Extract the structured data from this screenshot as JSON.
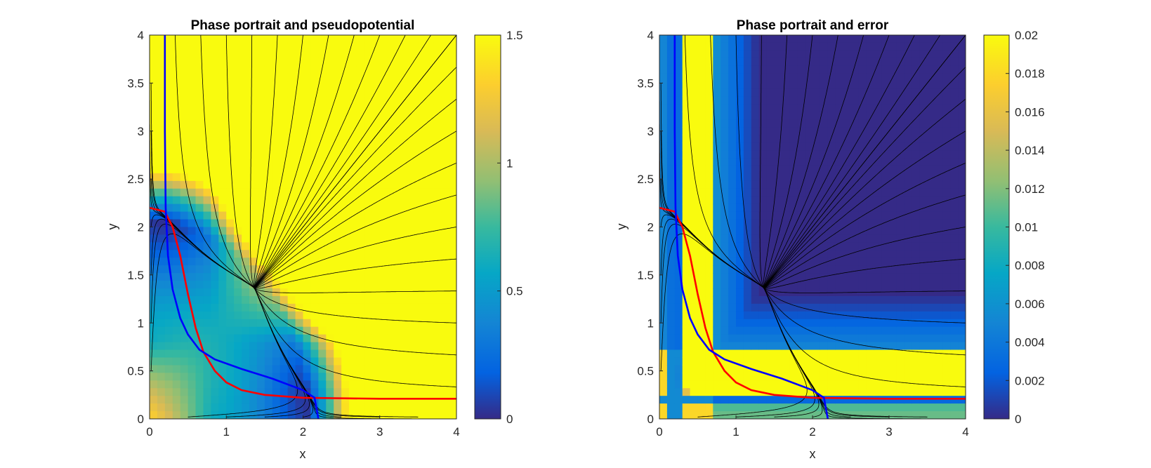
{
  "chart_data": [
    {
      "type": "heatmap",
      "title": "Phase portrait and pseudopotential",
      "xlabel": "x",
      "ylabel": "y",
      "xlim": [
        0,
        4
      ],
      "ylim": [
        0,
        4
      ],
      "x_ticks": [
        "0",
        "1",
        "2",
        "3",
        "4"
      ],
      "y_ticks": [
        "0",
        "0.5",
        "1",
        "1.5",
        "2",
        "2.5",
        "3",
        "3.5",
        "4"
      ],
      "colorbar": {
        "clim": [
          0,
          1.5
        ],
        "ticks": [
          "0",
          "0.5",
          "1",
          "1.5"
        ],
        "colormap": "parula"
      },
      "fixed_points": [
        {
          "x": 0.0,
          "y": 2.2
        },
        {
          "x": 2.2,
          "y": 0.0
        },
        {
          "x": 0.45,
          "y": 0.45
        }
      ],
      "nullclines": [
        {
          "color": "#ff0000",
          "points": [
            [
              0,
              2.2
            ],
            [
              0.2,
              2.16
            ],
            [
              0.3,
              2.0
            ],
            [
              0.4,
              1.7
            ],
            [
              0.5,
              1.3
            ],
            [
              0.6,
              0.95
            ],
            [
              0.7,
              0.7
            ],
            [
              0.85,
              0.5
            ],
            [
              1.0,
              0.38
            ],
            [
              1.2,
              0.3
            ],
            [
              1.5,
              0.25
            ],
            [
              2.0,
              0.22
            ],
            [
              3.0,
              0.21
            ],
            [
              4.0,
              0.21
            ]
          ]
        },
        {
          "color": "#0000ff",
          "points": [
            [
              0.2,
              4.0
            ],
            [
              0.2,
              3.0
            ],
            [
              0.21,
              2.2
            ],
            [
              0.24,
              1.7
            ],
            [
              0.3,
              1.35
            ],
            [
              0.4,
              1.05
            ],
            [
              0.5,
              0.88
            ],
            [
              0.65,
              0.72
            ],
            [
              0.85,
              0.62
            ],
            [
              1.2,
              0.52
            ],
            [
              1.6,
              0.42
            ],
            [
              2.0,
              0.3
            ],
            [
              2.15,
              0.22
            ],
            [
              2.2,
              0.0
            ]
          ]
        }
      ]
    },
    {
      "type": "heatmap",
      "title": "Phase portrait and error",
      "xlabel": "x",
      "ylabel": "y",
      "xlim": [
        0,
        4
      ],
      "ylim": [
        0,
        4
      ],
      "x_ticks": [
        "0",
        "1",
        "2",
        "3",
        "4"
      ],
      "y_ticks": [
        "0",
        "0.5",
        "1",
        "1.5",
        "2",
        "2.5",
        "3",
        "3.5",
        "4"
      ],
      "colorbar": {
        "clim": [
          0,
          0.02
        ],
        "ticks": [
          "0",
          "0.002",
          "0.004",
          "0.006",
          "0.008",
          "0.01",
          "0.012",
          "0.014",
          "0.016",
          "0.018",
          "0.02"
        ],
        "colormap": "parula"
      },
      "fixed_points": [
        {
          "x": 0.0,
          "y": 2.2
        },
        {
          "x": 2.2,
          "y": 0.0
        },
        {
          "x": 0.45,
          "y": 0.45
        }
      ],
      "nullclines": [
        {
          "color": "#ff0000",
          "points": [
            [
              0,
              2.2
            ],
            [
              0.2,
              2.16
            ],
            [
              0.3,
              2.0
            ],
            [
              0.4,
              1.7
            ],
            [
              0.5,
              1.3
            ],
            [
              0.6,
              0.95
            ],
            [
              0.7,
              0.7
            ],
            [
              0.85,
              0.5
            ],
            [
              1.0,
              0.38
            ],
            [
              1.2,
              0.3
            ],
            [
              1.5,
              0.25
            ],
            [
              2.0,
              0.22
            ],
            [
              3.0,
              0.21
            ],
            [
              4.0,
              0.21
            ]
          ]
        },
        {
          "color": "#0000ff",
          "points": [
            [
              0.2,
              4.0
            ],
            [
              0.2,
              3.0
            ],
            [
              0.21,
              2.2
            ],
            [
              0.24,
              1.7
            ],
            [
              0.3,
              1.35
            ],
            [
              0.4,
              1.05
            ],
            [
              0.5,
              0.88
            ],
            [
              0.65,
              0.72
            ],
            [
              0.85,
              0.62
            ],
            [
              1.2,
              0.52
            ],
            [
              1.6,
              0.42
            ],
            [
              2.0,
              0.3
            ],
            [
              2.15,
              0.22
            ],
            [
              2.2,
              0.0
            ]
          ]
        }
      ]
    }
  ]
}
